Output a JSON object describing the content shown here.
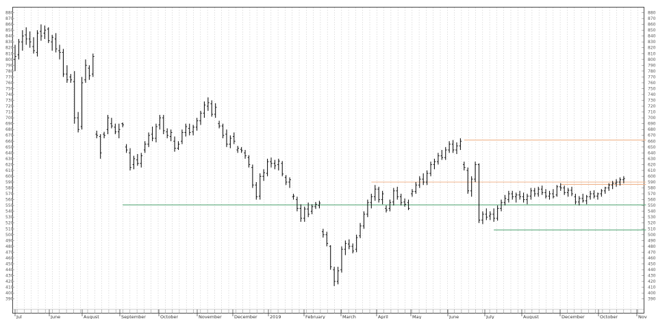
{
  "header": {
    "text": ""
  },
  "chart_data": {
    "type": "ohlc",
    "title": "",
    "xlabel": "",
    "ylabel": "",
    "ylim": [
      365,
      890
    ],
    "y_ticks": [
      390,
      400,
      410,
      420,
      430,
      440,
      450,
      460,
      470,
      480,
      490,
      500,
      510,
      520,
      530,
      540,
      550,
      560,
      570,
      580,
      590,
      600,
      610,
      620,
      630,
      640,
      650,
      660,
      670,
      680,
      690,
      700,
      710,
      720,
      730,
      740,
      750,
      760,
      770,
      780,
      790,
      800,
      810,
      820,
      830,
      840,
      850,
      860,
      870,
      880
    ],
    "month_labels": [
      "Jul",
      "June",
      "August",
      "September",
      "October",
      "November",
      "December",
      "2019",
      "February",
      "March",
      "April",
      "May",
      "June",
      "July",
      "August",
      "December",
      "October",
      "Nov"
    ],
    "grid": "vertical-dotted",
    "colors": {
      "bar": "#111111",
      "support": "#5aa97a",
      "resistance": "#f0b48c",
      "grid": "#c8c8c8",
      "frame": "#444444"
    },
    "levels": [
      {
        "kind": "support",
        "value": 551,
        "x_start": 29,
        "x_end": 170
      },
      {
        "kind": "support",
        "value": 508,
        "x_start": 129,
        "x_end": 170
      },
      {
        "kind": "resistance",
        "value": 662,
        "x_start": 121,
        "x_end": 170
      },
      {
        "kind": "resistance",
        "value": 590,
        "x_start": 96,
        "x_end": 170
      },
      {
        "kind": "resistance",
        "value": 586,
        "x_start": 147,
        "x_end": 170
      }
    ],
    "ohlc": [
      {
        "x": 0,
        "o": 800,
        "h": 825,
        "l": 780,
        "c": 805
      },
      {
        "x": 1,
        "o": 808,
        "h": 835,
        "l": 800,
        "c": 830
      },
      {
        "x": 2,
        "o": 830,
        "h": 850,
        "l": 815,
        "c": 840
      },
      {
        "x": 3,
        "o": 842,
        "h": 855,
        "l": 825,
        "c": 835
      },
      {
        "x": 4,
        "o": 835,
        "h": 848,
        "l": 820,
        "c": 830
      },
      {
        "x": 5,
        "o": 822,
        "h": 838,
        "l": 810,
        "c": 815
      },
      {
        "x": 6,
        "o": 812,
        "h": 850,
        "l": 805,
        "c": 845
      },
      {
        "x": 7,
        "o": 848,
        "h": 860,
        "l": 832,
        "c": 840
      },
      {
        "x": 8,
        "o": 845,
        "h": 858,
        "l": 835,
        "c": 850
      },
      {
        "x": 9,
        "o": 852,
        "h": 855,
        "l": 828,
        "c": 832
      },
      {
        "x": 10,
        "o": 830,
        "h": 842,
        "l": 815,
        "c": 838
      },
      {
        "x": 11,
        "o": 835,
        "h": 845,
        "l": 812,
        "c": 818
      },
      {
        "x": 12,
        "o": 815,
        "h": 825,
        "l": 800,
        "c": 812
      },
      {
        "x": 13,
        "o": 812,
        "h": 818,
        "l": 770,
        "c": 775
      },
      {
        "x": 14,
        "o": 775,
        "h": 790,
        "l": 760,
        "c": 765
      },
      {
        "x": 15,
        "o": 770,
        "h": 775,
        "l": 760,
        "c": 765
      },
      {
        "x": 16,
        "o": 762,
        "h": 780,
        "l": 690,
        "c": 700
      },
      {
        "x": 17,
        "o": 700,
        "h": 710,
        "l": 675,
        "c": 680
      },
      {
        "x": 18,
        "o": 685,
        "h": 770,
        "l": 680,
        "c": 760
      },
      {
        "x": 19,
        "o": 765,
        "h": 800,
        "l": 760,
        "c": 790
      },
      {
        "x": 20,
        "o": 785,
        "h": 790,
        "l": 765,
        "c": 772
      },
      {
        "x": 21,
        "o": 775,
        "h": 810,
        "l": 770,
        "c": 805
      },
      {
        "x": 22,
        "o": 672,
        "h": 678,
        "l": 665,
        "c": 670
      },
      {
        "x": 23,
        "o": 668,
        "h": 672,
        "l": 630,
        "c": 640
      },
      {
        "x": 24,
        "o": 672,
        "h": 676,
        "l": 665,
        "c": 670
      },
      {
        "x": 25,
        "o": 680,
        "h": 705,
        "l": 672,
        "c": 700
      },
      {
        "x": 26,
        "o": 690,
        "h": 700,
        "l": 682,
        "c": 686
      },
      {
        "x": 27,
        "o": 684,
        "h": 690,
        "l": 672,
        "c": 676
      },
      {
        "x": 28,
        "o": 676,
        "h": 690,
        "l": 665,
        "c": 680
      },
      {
        "x": 29,
        "o": 690,
        "h": 692,
        "l": 684,
        "c": 688
      },
      {
        "x": 30,
        "o": 650,
        "h": 655,
        "l": 640,
        "c": 645
      },
      {
        "x": 31,
        "o": 640,
        "h": 648,
        "l": 610,
        "c": 615
      },
      {
        "x": 32,
        "o": 620,
        "h": 635,
        "l": 612,
        "c": 630
      },
      {
        "x": 33,
        "o": 628,
        "h": 638,
        "l": 618,
        "c": 622
      },
      {
        "x": 34,
        "o": 622,
        "h": 640,
        "l": 615,
        "c": 635
      },
      {
        "x": 35,
        "o": 645,
        "h": 660,
        "l": 640,
        "c": 655
      },
      {
        "x": 36,
        "o": 655,
        "h": 675,
        "l": 650,
        "c": 670
      },
      {
        "x": 37,
        "o": 672,
        "h": 685,
        "l": 660,
        "c": 665
      },
      {
        "x": 38,
        "o": 665,
        "h": 690,
        "l": 658,
        "c": 685
      },
      {
        "x": 39,
        "o": 688,
        "h": 705,
        "l": 680,
        "c": 700
      },
      {
        "x": 40,
        "o": 700,
        "h": 705,
        "l": 672,
        "c": 678
      },
      {
        "x": 41,
        "o": 676,
        "h": 682,
        "l": 665,
        "c": 670
      },
      {
        "x": 42,
        "o": 668,
        "h": 680,
        "l": 660,
        "c": 675
      },
      {
        "x": 43,
        "o": 660,
        "h": 668,
        "l": 642,
        "c": 648
      },
      {
        "x": 44,
        "o": 648,
        "h": 660,
        "l": 645,
        "c": 655
      },
      {
        "x": 45,
        "o": 660,
        "h": 680,
        "l": 655,
        "c": 675
      },
      {
        "x": 46,
        "o": 675,
        "h": 690,
        "l": 668,
        "c": 685
      },
      {
        "x": 47,
        "o": 682,
        "h": 690,
        "l": 670,
        "c": 675
      },
      {
        "x": 48,
        "o": 676,
        "h": 688,
        "l": 670,
        "c": 684
      },
      {
        "x": 49,
        "o": 684,
        "h": 700,
        "l": 678,
        "c": 695
      },
      {
        "x": 50,
        "o": 695,
        "h": 712,
        "l": 688,
        "c": 708
      },
      {
        "x": 51,
        "o": 708,
        "h": 728,
        "l": 700,
        "c": 722
      },
      {
        "x": 52,
        "o": 720,
        "h": 735,
        "l": 712,
        "c": 726
      },
      {
        "x": 53,
        "o": 724,
        "h": 730,
        "l": 702,
        "c": 706
      },
      {
        "x": 54,
        "o": 706,
        "h": 725,
        "l": 700,
        "c": 718
      },
      {
        "x": 55,
        "o": 690,
        "h": 695,
        "l": 682,
        "c": 686
      },
      {
        "x": 56,
        "o": 686,
        "h": 690,
        "l": 665,
        "c": 670
      },
      {
        "x": 57,
        "o": 672,
        "h": 680,
        "l": 650,
        "c": 655
      },
      {
        "x": 58,
        "o": 655,
        "h": 670,
        "l": 648,
        "c": 665
      },
      {
        "x": 59,
        "o": 668,
        "h": 675,
        "l": 655,
        "c": 660
      },
      {
        "x": 60,
        "o": 645,
        "h": 652,
        "l": 640,
        "c": 648
      },
      {
        "x": 61,
        "o": 646,
        "h": 650,
        "l": 640,
        "c": 644
      },
      {
        "x": 62,
        "o": 640,
        "h": 645,
        "l": 630,
        "c": 635
      },
      {
        "x": 63,
        "o": 632,
        "h": 636,
        "l": 615,
        "c": 620
      },
      {
        "x": 64,
        "o": 615,
        "h": 620,
        "l": 580,
        "c": 585
      },
      {
        "x": 65,
        "o": 585,
        "h": 590,
        "l": 560,
        "c": 565
      },
      {
        "x": 66,
        "o": 566,
        "h": 605,
        "l": 560,
        "c": 600
      },
      {
        "x": 67,
        "o": 600,
        "h": 612,
        "l": 592,
        "c": 606
      },
      {
        "x": 68,
        "o": 605,
        "h": 630,
        "l": 600,
        "c": 625
      },
      {
        "x": 69,
        "o": 625,
        "h": 632,
        "l": 615,
        "c": 622
      },
      {
        "x": 70,
        "o": 622,
        "h": 628,
        "l": 612,
        "c": 618
      },
      {
        "x": 71,
        "o": 620,
        "h": 630,
        "l": 610,
        "c": 626
      },
      {
        "x": 72,
        "o": 622,
        "h": 626,
        "l": 600,
        "c": 604
      },
      {
        "x": 73,
        "o": 598,
        "h": 602,
        "l": 585,
        "c": 590
      },
      {
        "x": 74,
        "o": 590,
        "h": 598,
        "l": 580,
        "c": 594
      },
      {
        "x": 75,
        "o": 565,
        "h": 570,
        "l": 560,
        "c": 566
      },
      {
        "x": 76,
        "o": 560,
        "h": 565,
        "l": 540,
        "c": 545
      },
      {
        "x": 77,
        "o": 545,
        "h": 552,
        "l": 522,
        "c": 528
      },
      {
        "x": 78,
        "o": 528,
        "h": 548,
        "l": 522,
        "c": 544
      },
      {
        "x": 79,
        "o": 544,
        "h": 555,
        "l": 530,
        "c": 535
      },
      {
        "x": 80,
        "o": 540,
        "h": 552,
        "l": 535,
        "c": 548
      },
      {
        "x": 81,
        "o": 548,
        "h": 556,
        "l": 544,
        "c": 552
      },
      {
        "x": 82,
        "o": 550,
        "h": 558,
        "l": 545,
        "c": 554
      },
      {
        "x": 83,
        "o": 505,
        "h": 510,
        "l": 495,
        "c": 500
      },
      {
        "x": 84,
        "o": 500,
        "h": 505,
        "l": 480,
        "c": 485
      },
      {
        "x": 85,
        "o": 480,
        "h": 482,
        "l": 440,
        "c": 445
      },
      {
        "x": 86,
        "o": 440,
        "h": 445,
        "l": 412,
        "c": 420
      },
      {
        "x": 87,
        "o": 420,
        "h": 445,
        "l": 415,
        "c": 438
      },
      {
        "x": 88,
        "o": 440,
        "h": 480,
        "l": 435,
        "c": 475
      },
      {
        "x": 89,
        "o": 475,
        "h": 490,
        "l": 465,
        "c": 485
      },
      {
        "x": 90,
        "o": 484,
        "h": 492,
        "l": 475,
        "c": 480
      },
      {
        "x": 91,
        "o": 480,
        "h": 485,
        "l": 468,
        "c": 472
      },
      {
        "x": 92,
        "o": 475,
        "h": 500,
        "l": 470,
        "c": 495
      },
      {
        "x": 93,
        "o": 498,
        "h": 520,
        "l": 494,
        "c": 515
      },
      {
        "x": 94,
        "o": 515,
        "h": 540,
        "l": 510,
        "c": 535
      },
      {
        "x": 95,
        "o": 535,
        "h": 560,
        "l": 530,
        "c": 555
      },
      {
        "x": 96,
        "o": 555,
        "h": 570,
        "l": 545,
        "c": 565
      },
      {
        "x": 97,
        "o": 565,
        "h": 585,
        "l": 558,
        "c": 578
      },
      {
        "x": 98,
        "o": 578,
        "h": 582,
        "l": 555,
        "c": 560
      },
      {
        "x": 99,
        "o": 560,
        "h": 575,
        "l": 552,
        "c": 570
      },
      {
        "x": 100,
        "o": 545,
        "h": 550,
        "l": 538,
        "c": 542
      },
      {
        "x": 101,
        "o": 545,
        "h": 560,
        "l": 540,
        "c": 555
      },
      {
        "x": 102,
        "o": 556,
        "h": 580,
        "l": 550,
        "c": 575
      },
      {
        "x": 103,
        "o": 575,
        "h": 582,
        "l": 560,
        "c": 565
      },
      {
        "x": 104,
        "o": 565,
        "h": 570,
        "l": 550,
        "c": 555
      },
      {
        "x": 105,
        "o": 556,
        "h": 562,
        "l": 548,
        "c": 552
      },
      {
        "x": 106,
        "o": 555,
        "h": 560,
        "l": 542,
        "c": 545
      },
      {
        "x": 107,
        "o": 570,
        "h": 578,
        "l": 565,
        "c": 574
      },
      {
        "x": 108,
        "o": 574,
        "h": 590,
        "l": 570,
        "c": 585
      },
      {
        "x": 109,
        "o": 585,
        "h": 600,
        "l": 580,
        "c": 595
      },
      {
        "x": 110,
        "o": 595,
        "h": 605,
        "l": 585,
        "c": 590
      },
      {
        "x": 111,
        "o": 590,
        "h": 610,
        "l": 585,
        "c": 605
      },
      {
        "x": 112,
        "o": 605,
        "h": 625,
        "l": 600,
        "c": 620
      },
      {
        "x": 113,
        "o": 620,
        "h": 630,
        "l": 612,
        "c": 625
      },
      {
        "x": 114,
        "o": 625,
        "h": 640,
        "l": 620,
        "c": 635
      },
      {
        "x": 115,
        "o": 635,
        "h": 645,
        "l": 628,
        "c": 632
      },
      {
        "x": 116,
        "o": 632,
        "h": 650,
        "l": 628,
        "c": 645
      },
      {
        "x": 117,
        "o": 645,
        "h": 660,
        "l": 640,
        "c": 655
      },
      {
        "x": 118,
        "o": 655,
        "h": 662,
        "l": 640,
        "c": 645
      },
      {
        "x": 119,
        "o": 645,
        "h": 658,
        "l": 638,
        "c": 652
      },
      {
        "x": 120,
        "o": 652,
        "h": 665,
        "l": 645,
        "c": 660
      },
      {
        "x": 121,
        "o": 620,
        "h": 625,
        "l": 610,
        "c": 615
      },
      {
        "x": 122,
        "o": 610,
        "h": 615,
        "l": 570,
        "c": 575
      },
      {
        "x": 123,
        "o": 575,
        "h": 600,
        "l": 565,
        "c": 595
      },
      {
        "x": 124,
        "o": 595,
        "h": 625,
        "l": 590,
        "c": 620
      },
      {
        "x": 125,
        "o": 620,
        "h": 622,
        "l": 520,
        "c": 525
      },
      {
        "x": 126,
        "o": 525,
        "h": 540,
        "l": 518,
        "c": 535
      },
      {
        "x": 127,
        "o": 535,
        "h": 545,
        "l": 525,
        "c": 530
      },
      {
        "x": 128,
        "o": 532,
        "h": 540,
        "l": 525,
        "c": 535
      },
      {
        "x": 129,
        "o": 535,
        "h": 545,
        "l": 522,
        "c": 528
      },
      {
        "x": 130,
        "o": 528,
        "h": 550,
        "l": 524,
        "c": 545
      },
      {
        "x": 131,
        "o": 545,
        "h": 560,
        "l": 540,
        "c": 555
      },
      {
        "x": 132,
        "o": 555,
        "h": 568,
        "l": 550,
        "c": 562
      },
      {
        "x": 133,
        "o": 560,
        "h": 575,
        "l": 555,
        "c": 570
      },
      {
        "x": 134,
        "o": 570,
        "h": 575,
        "l": 560,
        "c": 565
      },
      {
        "x": 135,
        "o": 565,
        "h": 572,
        "l": 555,
        "c": 568
      },
      {
        "x": 136,
        "o": 568,
        "h": 575,
        "l": 560,
        "c": 565
      },
      {
        "x": 137,
        "o": 565,
        "h": 572,
        "l": 555,
        "c": 560
      },
      {
        "x": 138,
        "o": 560,
        "h": 570,
        "l": 552,
        "c": 566
      },
      {
        "x": 139,
        "o": 566,
        "h": 580,
        "l": 560,
        "c": 575
      },
      {
        "x": 140,
        "o": 575,
        "h": 580,
        "l": 565,
        "c": 570
      },
      {
        "x": 141,
        "o": 570,
        "h": 582,
        "l": 565,
        "c": 578
      },
      {
        "x": 142,
        "o": 578,
        "h": 584,
        "l": 568,
        "c": 572
      },
      {
        "x": 143,
        "o": 572,
        "h": 578,
        "l": 562,
        "c": 566
      },
      {
        "x": 144,
        "o": 566,
        "h": 575,
        "l": 560,
        "c": 570
      },
      {
        "x": 145,
        "o": 570,
        "h": 578,
        "l": 562,
        "c": 565
      },
      {
        "x": 146,
        "o": 568,
        "h": 585,
        "l": 565,
        "c": 582
      },
      {
        "x": 147,
        "o": 582,
        "h": 588,
        "l": 575,
        "c": 580
      },
      {
        "x": 148,
        "o": 580,
        "h": 584,
        "l": 568,
        "c": 572
      },
      {
        "x": 149,
        "o": 572,
        "h": 580,
        "l": 565,
        "c": 576
      },
      {
        "x": 150,
        "o": 576,
        "h": 582,
        "l": 566,
        "c": 570
      },
      {
        "x": 151,
        "o": 565,
        "h": 570,
        "l": 552,
        "c": 556
      },
      {
        "x": 152,
        "o": 556,
        "h": 566,
        "l": 550,
        "c": 562
      },
      {
        "x": 153,
        "o": 562,
        "h": 570,
        "l": 555,
        "c": 558
      },
      {
        "x": 154,
        "o": 558,
        "h": 568,
        "l": 552,
        "c": 565
      },
      {
        "x": 155,
        "o": 565,
        "h": 575,
        "l": 560,
        "c": 570
      },
      {
        "x": 156,
        "o": 570,
        "h": 576,
        "l": 562,
        "c": 566
      },
      {
        "x": 157,
        "o": 566,
        "h": 572,
        "l": 560,
        "c": 570
      },
      {
        "x": 158,
        "o": 570,
        "h": 578,
        "l": 565,
        "c": 575
      },
      {
        "x": 159,
        "o": 575,
        "h": 582,
        "l": 570,
        "c": 580
      },
      {
        "x": 160,
        "o": 580,
        "h": 588,
        "l": 575,
        "c": 585
      },
      {
        "x": 161,
        "o": 585,
        "h": 592,
        "l": 578,
        "c": 588
      },
      {
        "x": 162,
        "o": 588,
        "h": 595,
        "l": 582,
        "c": 590
      },
      {
        "x": 163,
        "o": 590,
        "h": 598,
        "l": 584,
        "c": 594
      },
      {
        "x": 164,
        "o": 594,
        "h": 600,
        "l": 588,
        "c": 596
      }
    ]
  }
}
